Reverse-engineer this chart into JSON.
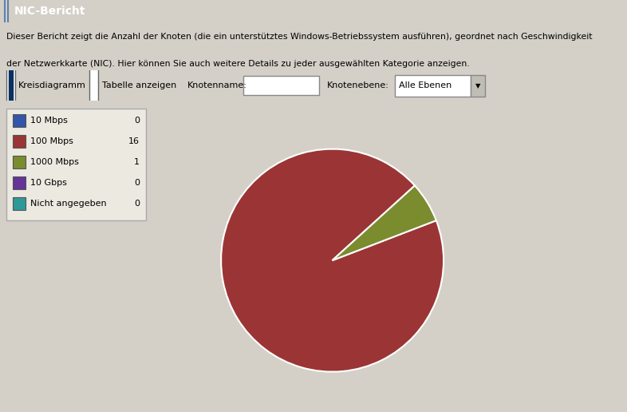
{
  "title": "NIC-Bericht",
  "desc1": "Dieser Bericht zeigt die Anzahl der Knoten (die ein unterstütztes Windows-Betriebssystem ausführen), geordnet nach Geschwindigkeit",
  "desc2": "der Netzwerkkarte (NIC). Hier können Sie auch weitere Details zu jeder ausgewählten Kategorie anzeigen.",
  "categories": [
    "10 Mbps",
    "100 Mbps",
    "1000 Mbps",
    "10 Gbps",
    "Nicht angegeben"
  ],
  "values": [
    0,
    16,
    1,
    0,
    0
  ],
  "colors": [
    "#3355aa",
    "#9b3535",
    "#7a8c2e",
    "#663399",
    "#2e9999"
  ],
  "bg_color": "#d4d0c8",
  "content_bg": "#dbd8d0",
  "legend_bg": "#ece9e0",
  "title_bar_color": "#0a3060",
  "title_text_color": "#ffffff",
  "toolbar_bg": "#d4d0c8",
  "pie_startangle": 0,
  "pie_nonzero_values": [
    16,
    1
  ],
  "pie_nonzero_colors": [
    "#9b3535",
    "#7a8c2e"
  ],
  "white_separator": "#ffffff"
}
